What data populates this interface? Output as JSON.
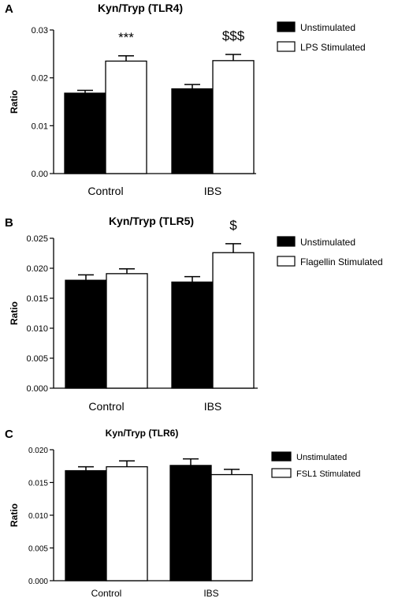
{
  "chart_data": [
    {
      "type": "bar",
      "panel": "A",
      "title": "Kyn/Tryp (TLR4)",
      "ylabel": "Ratio",
      "xlabel": "",
      "categories": [
        "Control",
        "IBS"
      ],
      "ylim": [
        0,
        0.03
      ],
      "yticks": [
        "0.00",
        "0.01",
        "0.02",
        "0.03"
      ],
      "yticks_values": [
        0,
        0.01,
        0.02,
        0.03
      ],
      "legend_position": "top-right",
      "series": [
        {
          "name": "Unstimulated",
          "color": "#000000",
          "values": [
            0.0168,
            0.0177
          ],
          "errors": [
            0.0006,
            0.0009
          ]
        },
        {
          "name": "LPS Stimulated",
          "color": "#ffffff",
          "values": [
            0.0235,
            0.0236
          ],
          "errors": [
            0.0011,
            0.0013
          ]
        }
      ],
      "annotations": [
        {
          "text": "***",
          "category": 0,
          "series": 1
        },
        {
          "text": "$$$",
          "category": 1,
          "series": 1
        }
      ]
    },
    {
      "type": "bar",
      "panel": "B",
      "title": "Kyn/Tryp (TLR5)",
      "ylabel": "Ratio",
      "xlabel": "",
      "categories": [
        "Control",
        "IBS"
      ],
      "ylim": [
        0,
        0.025
      ],
      "yticks": [
        "0.000",
        "0.005",
        "0.010",
        "0.015",
        "0.020",
        "0.025"
      ],
      "yticks_values": [
        0,
        0.005,
        0.01,
        0.015,
        0.02,
        0.025
      ],
      "legend_position": "top-right",
      "series": [
        {
          "name": "Unstimulated",
          "color": "#000000",
          "values": [
            0.018,
            0.0177
          ],
          "errors": [
            0.0009,
            0.0009
          ]
        },
        {
          "name": "Flagellin Stimulated",
          "color": "#ffffff",
          "values": [
            0.0191,
            0.0226
          ],
          "errors": [
            0.0008,
            0.0015
          ]
        }
      ],
      "annotations": [
        {
          "text": "$",
          "category": 1,
          "series": 1
        }
      ]
    },
    {
      "type": "bar",
      "panel": "C",
      "title": "Kyn/Tryp (TLR6)",
      "ylabel": "Ratio",
      "xlabel": "",
      "categories": [
        "Control",
        "IBS"
      ],
      "ylim": [
        0,
        0.02
      ],
      "yticks": [
        "0.000",
        "0.005",
        "0.010",
        "0.015",
        "0.020"
      ],
      "yticks_values": [
        0,
        0.005,
        0.01,
        0.015,
        0.02
      ],
      "legend_position": "top-right",
      "series": [
        {
          "name": "Unstimulated",
          "color": "#000000",
          "values": [
            0.0168,
            0.0176
          ],
          "errors": [
            0.0006,
            0.001
          ]
        },
        {
          "name": "FSL1 Stimulated",
          "color": "#ffffff",
          "values": [
            0.0174,
            0.0162
          ],
          "errors": [
            0.0009,
            0.0008
          ]
        }
      ],
      "annotations": []
    }
  ]
}
